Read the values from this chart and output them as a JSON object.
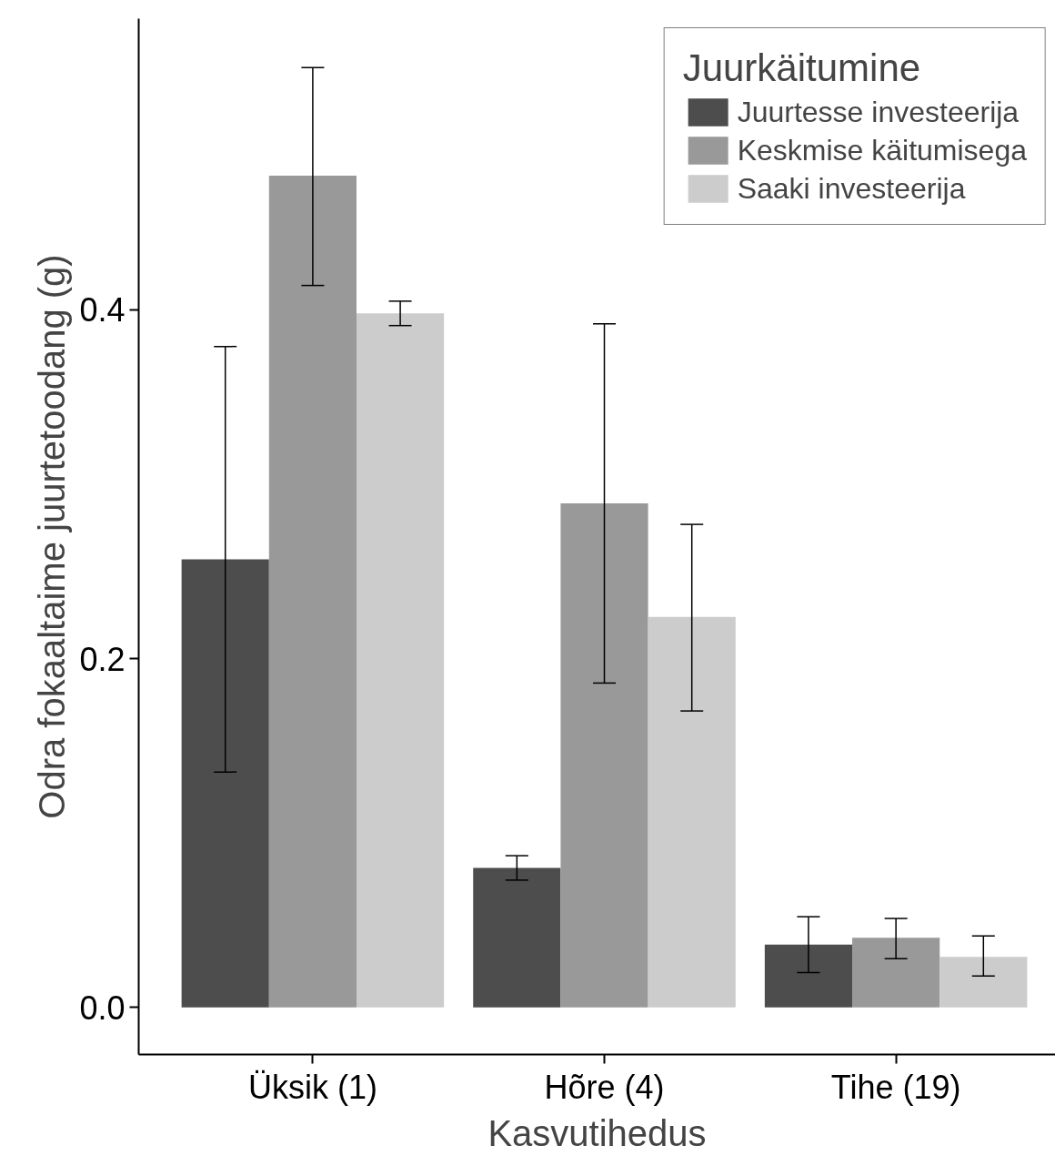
{
  "chart_data": {
    "type": "bar",
    "xlabel": "Kasvutihedus",
    "ylabel": "Odra fokaaltaime juurtetoodang (g)",
    "legend_title": "Juurkäitumine",
    "categories": [
      "Üksik (1)",
      "Hõre (4)",
      "Tihe (19)"
    ],
    "series": [
      {
        "name": "Juurtesse investeerija",
        "color": "#4d4d4d",
        "values": [
          0.257,
          0.08,
          0.036
        ],
        "errors": [
          [
            0.135,
            0.379
          ],
          [
            0.073,
            0.087
          ],
          [
            0.02,
            0.052
          ]
        ]
      },
      {
        "name": "Keskmise käitumisega",
        "color": "#999999",
        "values": [
          0.477,
          0.289,
          0.04
        ],
        "errors": [
          [
            0.414,
            0.539
          ],
          [
            0.186,
            0.392
          ],
          [
            0.028,
            0.051
          ]
        ]
      },
      {
        "name": "Saaki investeerija",
        "color": "#cccccc",
        "values": [
          0.398,
          0.224,
          0.029
        ],
        "errors": [
          [
            0.391,
            0.405
          ],
          [
            0.17,
            0.277
          ],
          [
            0.018,
            0.041
          ]
        ]
      }
    ],
    "ylim": [
      -0.027,
      0.567
    ],
    "yticks": [
      {
        "value": 0.0,
        "label": "0.0"
      },
      {
        "value": 0.2,
        "label": "0.2"
      },
      {
        "value": 0.4,
        "label": "0.4"
      }
    ],
    "legend": "top right"
  }
}
